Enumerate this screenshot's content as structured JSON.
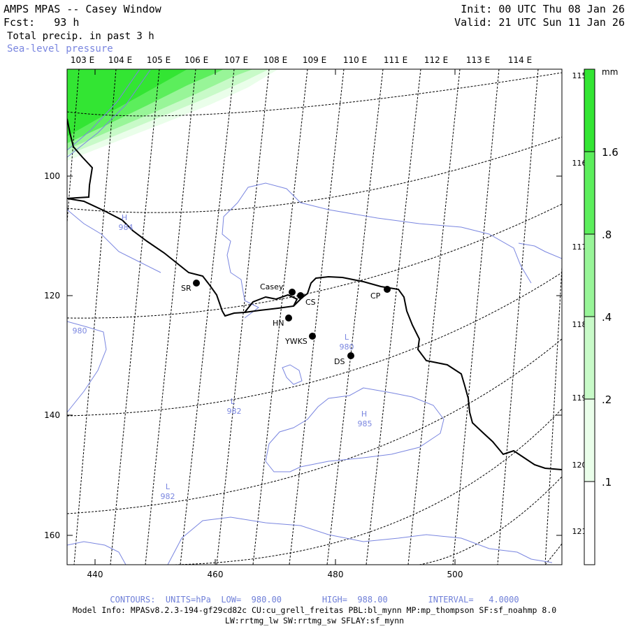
{
  "header": {
    "title": "AMPS MPAS -- Casey Window",
    "forecast": "Fcst:   93 h",
    "field": "Total precip. in past 3 h",
    "overlay": "Sea-level pressure",
    "init": "Init: 00 UTC Thu 08 Jan 26",
    "valid": "Valid: 21 UTC Sun 11 Jan 26"
  },
  "colors": {
    "isobar": "#7a86e0",
    "precip_levels": [
      "#ffffff",
      "#eafeea",
      "#c8fac8",
      "#98f598",
      "#5cee5c",
      "#33e533"
    ]
  },
  "axes": {
    "x_ticks": [
      "440",
      "460",
      "480",
      "500"
    ],
    "y_ticks": [
      "100",
      "120",
      "140",
      "160"
    ],
    "top_lon_labels": [
      "103 E",
      "104 E",
      "105 E",
      "106 E",
      "107 E",
      "108 E",
      "109 E",
      "110 E",
      "111 E",
      "112 E",
      "113 E",
      "114 E"
    ],
    "right_lon_labels": [
      "115 E",
      "116 E",
      "117 E",
      "118 E",
      "119 E",
      "120 E",
      "121 E"
    ]
  },
  "colorbar": {
    "unit": "mm",
    "labels": [
      "1.6",
      ".8",
      ".4",
      ".2",
      ".1"
    ]
  },
  "stations": [
    {
      "name": "SR",
      "lon": 106.8,
      "lat": -66.3
    },
    {
      "name": "Casey",
      "lon": 109.3,
      "lat": -66.2
    },
    {
      "name": "CS",
      "lon": 109.6,
      "lat": -66.3
    },
    {
      "name": "HN",
      "lon": 109.1,
      "lat": -66.5
    },
    {
      "name": "YWKS",
      "lon": 109.8,
      "lat": -66.8
    },
    {
      "name": "DS",
      "lon": 110.6,
      "lat": -67.1
    },
    {
      "name": "CP",
      "lon": 111.1,
      "lat": -66.3
    }
  ],
  "pressure_centers": [
    {
      "type": "H",
      "value": "984"
    },
    {
      "type": "L",
      "value": "980"
    },
    {
      "type": "L",
      "value": "982"
    },
    {
      "type": "H",
      "value": "985"
    },
    {
      "type": "L",
      "value": "982"
    }
  ],
  "contour_value_labels": [
    "980"
  ],
  "footer": {
    "contours": "CONTOURS:  UNITS=hPa  LOW=  980.00        HIGH=  988.00        INTERVAL=   4.0000",
    "model_info_1": "Model Info: MPASv8.2.3-194-gf29cd82c CU:cu_grell_freitas PBL:bl_mynn MP:mp_thompson SF:sf_noahmp 8.0",
    "model_info_2": "LW:rrtmg_lw SW:rrtmg_sw SFLAY:sf_mynn"
  }
}
